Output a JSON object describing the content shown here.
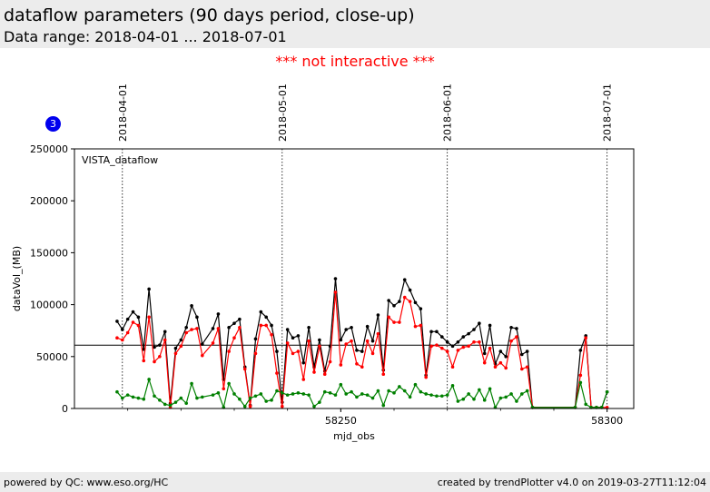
{
  "header": {
    "title": "dataflow parameters (90 days period, close-up)",
    "subtitle": "Data range: 2018-04-01 ... 2018-07-01"
  },
  "notice": "*** not interactive ***",
  "badge": "3",
  "footer": {
    "left": "powered by QC: www.eso.org/HC",
    "right": "created by trendPlotter v4.0 on 2019-03-27T11:12:04"
  },
  "colors": {
    "total": "#000000",
    "red": "#ff0000",
    "green": "#008000",
    "header_bg": "#ececec",
    "notice": "#ff0000",
    "badge": "#0000ee"
  },
  "chart_data": {
    "type": "line",
    "panel_label": "VISTA_dataflow",
    "xlabel": "mjd_obs",
    "ylabel": "dataVol_(MB)",
    "xlim": [
      58200,
      58305
    ],
    "ylim": [
      0,
      250000
    ],
    "x_ticks": [
      58250,
      58300
    ],
    "x_tick_labels": [
      "58250",
      "58300"
    ],
    "y_ticks": [
      0,
      50000,
      100000,
      150000,
      200000,
      250000
    ],
    "y_tick_labels": [
      "0",
      "50000",
      "100000",
      "150000",
      "200000",
      "250000"
    ],
    "reference_line": 61000,
    "date_markers": [
      {
        "label": "2018-04-01",
        "mjd": 58209
      },
      {
        "label": "2018-05-01",
        "mjd": 58239
      },
      {
        "label": "2018-06-01",
        "mjd": 58270
      },
      {
        "label": "2018-07-01",
        "mjd": 58300
      }
    ],
    "x": [
      58208,
      58209,
      58210,
      58211,
      58212,
      58213,
      58214,
      58215,
      58216,
      58217,
      58218,
      58219,
      58220,
      58221,
      58222,
      58223,
      58224,
      58226,
      58227,
      58228,
      58229,
      58230,
      58231,
      58232,
      58233,
      58234,
      58235,
      58236,
      58237,
      58238,
      58239,
      58240,
      58241,
      58242,
      58243,
      58244,
      58245,
      58246,
      58247,
      58248,
      58249,
      58250,
      58251,
      58252,
      58253,
      58254,
      58255,
      58256,
      58257,
      58258,
      58259,
      58260,
      58261,
      58262,
      58263,
      58264,
      58265,
      58266,
      58267,
      58268,
      58269,
      58270,
      58271,
      58272,
      58273,
      58274,
      58275,
      58276,
      58277,
      58278,
      58279,
      58280,
      58281,
      58282,
      58283,
      58284,
      58285,
      58286,
      58294,
      58295,
      58296,
      58297,
      58298,
      58299,
      58300
    ],
    "series": [
      {
        "color": "#000000",
        "values": [
          84000,
          76000,
          86000,
          93000,
          88000,
          57000,
          115000,
          59000,
          61000,
          74000,
          5000,
          58000,
          66000,
          78000,
          99000,
          88000,
          62000,
          77000,
          91000,
          28000,
          78000,
          82000,
          86000,
          40000,
          3000,
          67000,
          93000,
          88000,
          80000,
          55000,
          6000,
          76000,
          68000,
          70000,
          44000,
          78000,
          40000,
          66000,
          36000,
          60000,
          125000,
          66000,
          76000,
          78000,
          56000,
          55000,
          79000,
          65000,
          90000,
          37000,
          104000,
          99000,
          103000,
          124000,
          114000,
          102000,
          96000,
          32000,
          74000,
          74000,
          69000,
          64000,
          60000,
          64000,
          69000,
          72000,
          76000,
          82000,
          53000,
          80000,
          43000,
          55000,
          50000,
          78000,
          77000,
          52000,
          55000,
          1000,
          1000,
          56000,
          70000,
          1000,
          1000,
          1000,
          16000
        ]
      },
      {
        "color": "#ff0000",
        "values": [
          68000,
          66000,
          73000,
          83000,
          80000,
          46000,
          88000,
          45000,
          50000,
          66000,
          1000,
          53000,
          60000,
          73000,
          76000,
          77000,
          51000,
          63000,
          77000,
          19000,
          55000,
          68000,
          78000,
          38000,
          2000,
          53000,
          80000,
          80000,
          71000,
          34000,
          2000,
          63000,
          53000,
          55000,
          28000,
          65000,
          35000,
          60000,
          33000,
          45000,
          112000,
          42000,
          62000,
          65000,
          43000,
          40000,
          65000,
          53000,
          72000,
          33000,
          88000,
          83000,
          83000,
          107000,
          103000,
          79000,
          80000,
          30000,
          60000,
          61000,
          58000,
          55000,
          40000,
          56000,
          59000,
          60000,
          64000,
          64000,
          44000,
          58000,
          40000,
          44000,
          39000,
          65000,
          69000,
          38000,
          40000,
          1000,
          1000,
          32000,
          68000,
          1000,
          1000,
          1000,
          1000
        ]
      },
      {
        "color": "#008000",
        "values": [
          16000,
          10000,
          13000,
          11000,
          10000,
          9000,
          28000,
          12000,
          8000,
          4000,
          3000,
          6000,
          10000,
          5000,
          24000,
          10000,
          11000,
          13000,
          15000,
          1000,
          24000,
          14000,
          9000,
          2000,
          10000,
          12000,
          14000,
          7000,
          8000,
          17000,
          15000,
          13000,
          14000,
          15000,
          14000,
          13000,
          2000,
          6000,
          16000,
          15000,
          13000,
          23000,
          14000,
          16000,
          11000,
          14000,
          13000,
          10000,
          17000,
          3000,
          17000,
          15000,
          21000,
          17000,
          11000,
          23000,
          16000,
          14000,
          13000,
          12000,
          12000,
          13000,
          22000,
          7000,
          9000,
          14000,
          9000,
          18000,
          8000,
          19000,
          1000,
          10000,
          11000,
          14000,
          7000,
          14000,
          17000,
          1000,
          1000,
          25000,
          4000,
          1000,
          1000,
          1000,
          16000
        ]
      }
    ]
  }
}
